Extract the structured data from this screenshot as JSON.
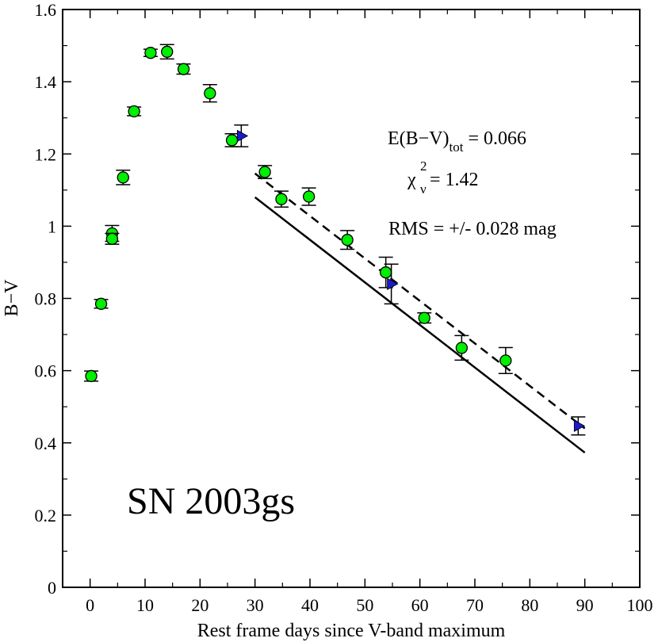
{
  "chart_data": {
    "type": "scatter",
    "title": "",
    "xlabel": "Rest frame days since V-band maximum",
    "ylabel": "B−V",
    "xlim": [
      -5,
      100
    ],
    "ylim": [
      0,
      1.6
    ],
    "x_ticks": [
      0,
      10,
      20,
      30,
      40,
      50,
      60,
      70,
      80,
      90,
      100
    ],
    "y_ticks": [
      0,
      0.2,
      0.4,
      0.6,
      0.8,
      1.0,
      1.2,
      1.4,
      1.6
    ],
    "x_tick_labels": [
      "0",
      "10",
      "20",
      "30",
      "40",
      "50",
      "60",
      "70",
      "80",
      "90",
      "100"
    ],
    "y_tick_labels": [
      "0",
      "0.2",
      "0.4",
      "0.6",
      "0.8",
      "1",
      "1.2",
      "1.4",
      "1.6"
    ],
    "grid": false,
    "object_label": "SN 2003gs",
    "annotations": {
      "ebv_main": "E(B−V)",
      "ebv_sub": "tot",
      "ebv_value": " = 0.066",
      "chi_symbol": "χ",
      "chi_sup": "2",
      "chi_sub": "ν",
      "chi_value": " = 1.42",
      "rms": "RMS = +/- 0.028 mag"
    },
    "series": [
      {
        "marker": "circle",
        "color": "#00ee00",
        "points": [
          {
            "x": 0.2,
            "y": 0.585,
            "err": 0.014
          },
          {
            "x": 2.0,
            "y": 0.785,
            "err": 0.012
          },
          {
            "x": 4.0,
            "y": 0.98,
            "err": 0.022
          },
          {
            "x": 4.0,
            "y": 0.965,
            "err": 0.015
          },
          {
            "x": 6.0,
            "y": 1.135,
            "err": 0.02
          },
          {
            "x": 8.0,
            "y": 1.318,
            "err": 0.012
          },
          {
            "x": 11.0,
            "y": 1.48,
            "err": 0.01
          },
          {
            "x": 14.0,
            "y": 1.483,
            "err": 0.02
          },
          {
            "x": 17.0,
            "y": 1.435,
            "err": 0.014
          },
          {
            "x": 21.8,
            "y": 1.368,
            "err": 0.024
          },
          {
            "x": 25.8,
            "y": 1.238,
            "err": 0.018
          },
          {
            "x": 31.8,
            "y": 1.15,
            "err": 0.018
          },
          {
            "x": 34.8,
            "y": 1.075,
            "err": 0.022
          },
          {
            "x": 39.8,
            "y": 1.082,
            "err": 0.024
          },
          {
            "x": 46.8,
            "y": 0.962,
            "err": 0.026
          },
          {
            "x": 53.8,
            "y": 0.872,
            "err": 0.042
          },
          {
            "x": 60.8,
            "y": 0.746,
            "err": 0.014
          },
          {
            "x": 67.6,
            "y": 0.663,
            "err": 0.034
          },
          {
            "x": 75.6,
            "y": 0.628,
            "err": 0.036
          }
        ]
      },
      {
        "marker": "triangle-right",
        "color": "#1a1acc",
        "points": [
          {
            "x": 27.5,
            "y": 1.25,
            "err": 0.03
          },
          {
            "x": 54.8,
            "y": 0.84,
            "err": 0.055
          },
          {
            "x": 88.8,
            "y": 0.447,
            "err": 0.025
          }
        ]
      }
    ],
    "lines": [
      {
        "style": "solid",
        "x": [
          30,
          90
        ],
        "y": [
          1.08,
          0.373
        ]
      },
      {
        "style": "dashed",
        "x": [
          30,
          90
        ],
        "y": [
          1.146,
          0.44
        ]
      }
    ]
  }
}
